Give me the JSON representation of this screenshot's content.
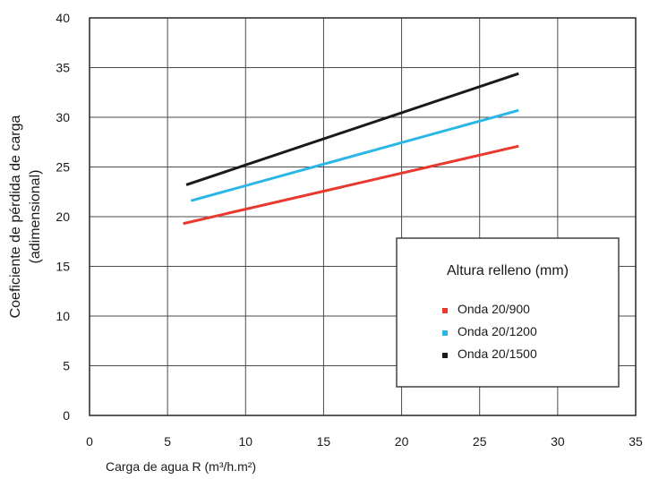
{
  "chart_data": {
    "type": "line",
    "title": "",
    "xlabel": "Carga de agua R (m³/h.m²)",
    "ylabel_line1": "Coeficiente de pérdida de carga",
    "ylabel_line2": "(adimensional)",
    "xlim": [
      0,
      35
    ],
    "ylim": [
      0,
      40
    ],
    "xticks": [
      "0",
      "5",
      "10",
      "15",
      "20",
      "25",
      "30",
      "35"
    ],
    "yticks": [
      "0",
      "5",
      "10",
      "15",
      "20",
      "25",
      "30",
      "35",
      "40"
    ],
    "grid": true,
    "legend": {
      "title": "Altura relleno (mm)",
      "placement": "lower-right"
    },
    "series": [
      {
        "name": "Onda 20/900",
        "color": "#e8392f",
        "x": [
          6,
          27.5
        ],
        "y": [
          19.3,
          27.1
        ]
      },
      {
        "name": "Onda 20/1200",
        "color": "#2ab7e6",
        "x": [
          6.5,
          27.5
        ],
        "y": [
          21.6,
          30.7
        ]
      },
      {
        "name": "Onda 20/1500",
        "color": "#1a1a1a",
        "x": [
          6.2,
          27.5
        ],
        "y": [
          23.2,
          34.4
        ]
      }
    ]
  }
}
